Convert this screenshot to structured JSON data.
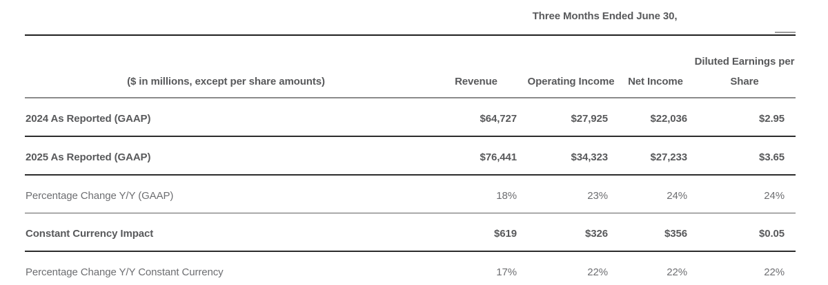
{
  "table": {
    "period_header": "Three Months Ended June 30,",
    "units_note": "($ in millions, except per share amounts)",
    "columns": {
      "revenue": "Revenue",
      "operating_income": "Operating Income",
      "net_income": "Net Income",
      "diluted_eps": "Diluted Earnings per\nShare"
    },
    "rows": [
      {
        "label": "2024 As Reported (GAAP)",
        "style": "bold",
        "revenue": "$64,727",
        "operating_income": "$27,925",
        "net_income": "$22,036",
        "diluted_eps": "$2.95"
      },
      {
        "label": "2025 As Reported (GAAP)",
        "style": "bold",
        "revenue": "$76,441",
        "operating_income": "$34,323",
        "net_income": "$27,233",
        "diluted_eps": "$3.65"
      },
      {
        "label": "Percentage Change Y/Y (GAAP)",
        "style": "regular",
        "revenue": "18%",
        "operating_income": "23%",
        "net_income": "24%",
        "diluted_eps": "24%"
      },
      {
        "label": "Constant Currency Impact",
        "style": "bold",
        "revenue": "$619",
        "operating_income": "$326",
        "net_income": "$356",
        "diluted_eps": "$0.05"
      },
      {
        "label": "Percentage Change Y/Y Constant Currency",
        "style": "regular",
        "revenue": "17%",
        "operating_income": "22%",
        "net_income": "22%",
        "diluted_eps": "22%"
      }
    ],
    "colors": {
      "bold_text": "#58595b",
      "regular_text": "#6d6e71",
      "rule_black": "#1f1f1f",
      "rule_header_gray": "#8a8a8a",
      "rule_medium_gray": "#5f5f5f",
      "rule_light_gray": "#9a9a9a",
      "background": "#ffffff"
    }
  }
}
